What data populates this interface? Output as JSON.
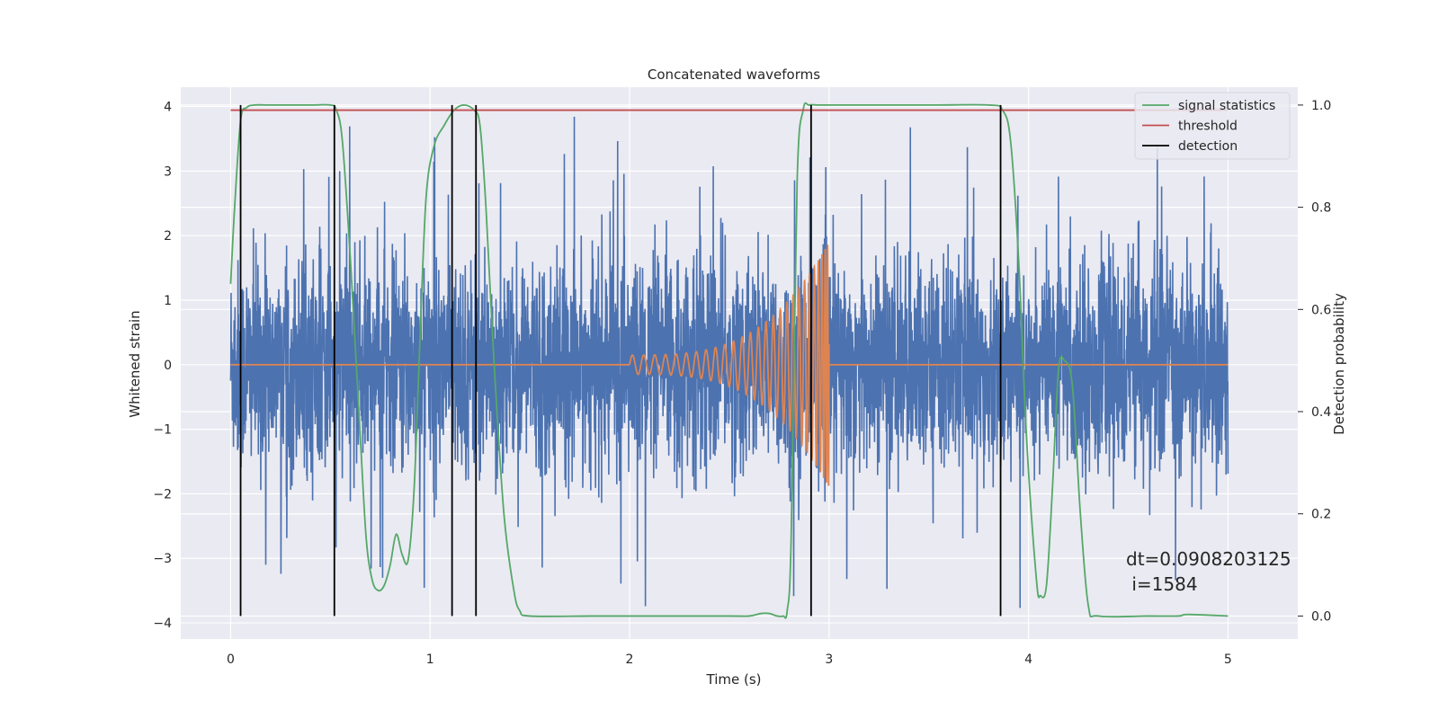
{
  "chart_data": {
    "type": "line",
    "title": "Concatenated waveforms",
    "xlabel": "Time (s)",
    "ylabel": "Whitened strain",
    "ylabel_right": "Detection probability",
    "xlim": [
      -0.25,
      5.35
    ],
    "ylim": [
      -4.25,
      4.3
    ],
    "ylim_right": [
      -0.045,
      1.035
    ],
    "x_ticks": [
      0,
      1,
      2,
      3,
      4,
      5
    ],
    "y_ticks": [
      -4,
      -3,
      -2,
      -1,
      0,
      1,
      2,
      3,
      4
    ],
    "y_ticks_right": [
      0.0,
      0.2,
      0.4,
      0.6,
      0.8,
      1.0
    ],
    "x_tick_labels": [
      "0",
      "1",
      "2",
      "3",
      "4",
      "5"
    ],
    "y_tick_labels": [
      "−4",
      "−3",
      "−2",
      "−1",
      "0",
      "1",
      "2",
      "3",
      "4"
    ],
    "y_tick_labels_right": [
      "0.0",
      "0.2",
      "0.4",
      "0.6",
      "0.8",
      "1.0"
    ],
    "grid": true,
    "legend_placement": "upper-right",
    "legend": [
      {
        "label": "signal statistics",
        "color": "#55a868"
      },
      {
        "label": "threshold",
        "color": "#c44e52"
      },
      {
        "label": "detection",
        "color": "#000000"
      }
    ],
    "colors": {
      "noise": "#4c72b0",
      "chirp": "#dd8452",
      "signal_statistics": "#55a868",
      "threshold": "#c44e52",
      "detection": "#000000",
      "plot_background": "#eaeaf2",
      "grid": "#ffffff"
    },
    "series": [
      {
        "kind": "noise",
        "axis": "left",
        "x_range": [
          0,
          5
        ],
        "std": 0.8,
        "envelope_y": [
          -3.9,
          3.95
        ]
      },
      {
        "kind": "chirp",
        "axis": "left",
        "x_range": [
          2,
          3
        ],
        "amplitude_start": 0.15,
        "amplitude_end": 1.9,
        "zero_line": [
          0,
          5
        ]
      },
      {
        "name": "signal statistics",
        "axis": "right",
        "x": [
          0.0,
          0.02,
          0.05,
          0.08,
          0.12,
          0.2,
          0.4,
          0.5,
          0.53,
          0.56,
          0.6,
          0.65,
          0.68,
          0.71,
          0.74,
          0.77,
          0.8,
          0.83,
          0.86,
          0.89,
          0.92,
          0.95,
          0.98,
          1.02,
          1.07,
          1.12,
          1.17,
          1.22,
          1.25,
          1.28,
          1.32,
          1.37,
          1.42,
          1.45,
          1.5,
          1.8,
          2.0,
          2.5,
          2.6,
          2.66,
          2.7,
          2.74,
          2.77,
          2.79,
          2.81,
          2.84,
          2.87,
          2.9,
          2.95,
          3.05,
          3.5,
          3.8,
          3.87,
          3.91,
          3.95,
          3.99,
          4.04,
          4.06,
          4.09,
          4.12,
          4.15,
          4.18,
          4.22,
          4.26,
          4.3,
          4.35,
          4.6,
          4.75,
          4.8,
          5.0
        ],
        "y": [
          0.65,
          0.8,
          0.97,
          0.995,
          1.0,
          1.0,
          1.0,
          1.0,
          0.99,
          0.93,
          0.7,
          0.35,
          0.15,
          0.07,
          0.05,
          0.06,
          0.1,
          0.16,
          0.12,
          0.11,
          0.25,
          0.55,
          0.82,
          0.92,
          0.96,
          0.99,
          1.0,
          0.99,
          0.96,
          0.8,
          0.5,
          0.2,
          0.05,
          0.01,
          0.0,
          0.0,
          0.0,
          0.0,
          0.0,
          0.005,
          0.005,
          0.0,
          0.0,
          0.01,
          0.15,
          0.85,
          0.99,
          1.0,
          1.0,
          1.0,
          1.0,
          1.0,
          0.99,
          0.93,
          0.7,
          0.35,
          0.07,
          0.04,
          0.06,
          0.25,
          0.48,
          0.5,
          0.45,
          0.2,
          0.02,
          0.0,
          0.0,
          0.0,
          0.003,
          0.0
        ]
      },
      {
        "name": "threshold",
        "axis": "right",
        "x": [
          0,
          5
        ],
        "y": [
          0.99,
          0.99
        ]
      },
      {
        "name": "detection",
        "axis": "right",
        "x": [
          0.05,
          0.52,
          1.11,
          1.23,
          2.91,
          3.86
        ],
        "y_range": [
          0.0,
          1.0
        ]
      }
    ],
    "annotations": [
      "dt=0.0908203125",
      " i=1584"
    ]
  }
}
